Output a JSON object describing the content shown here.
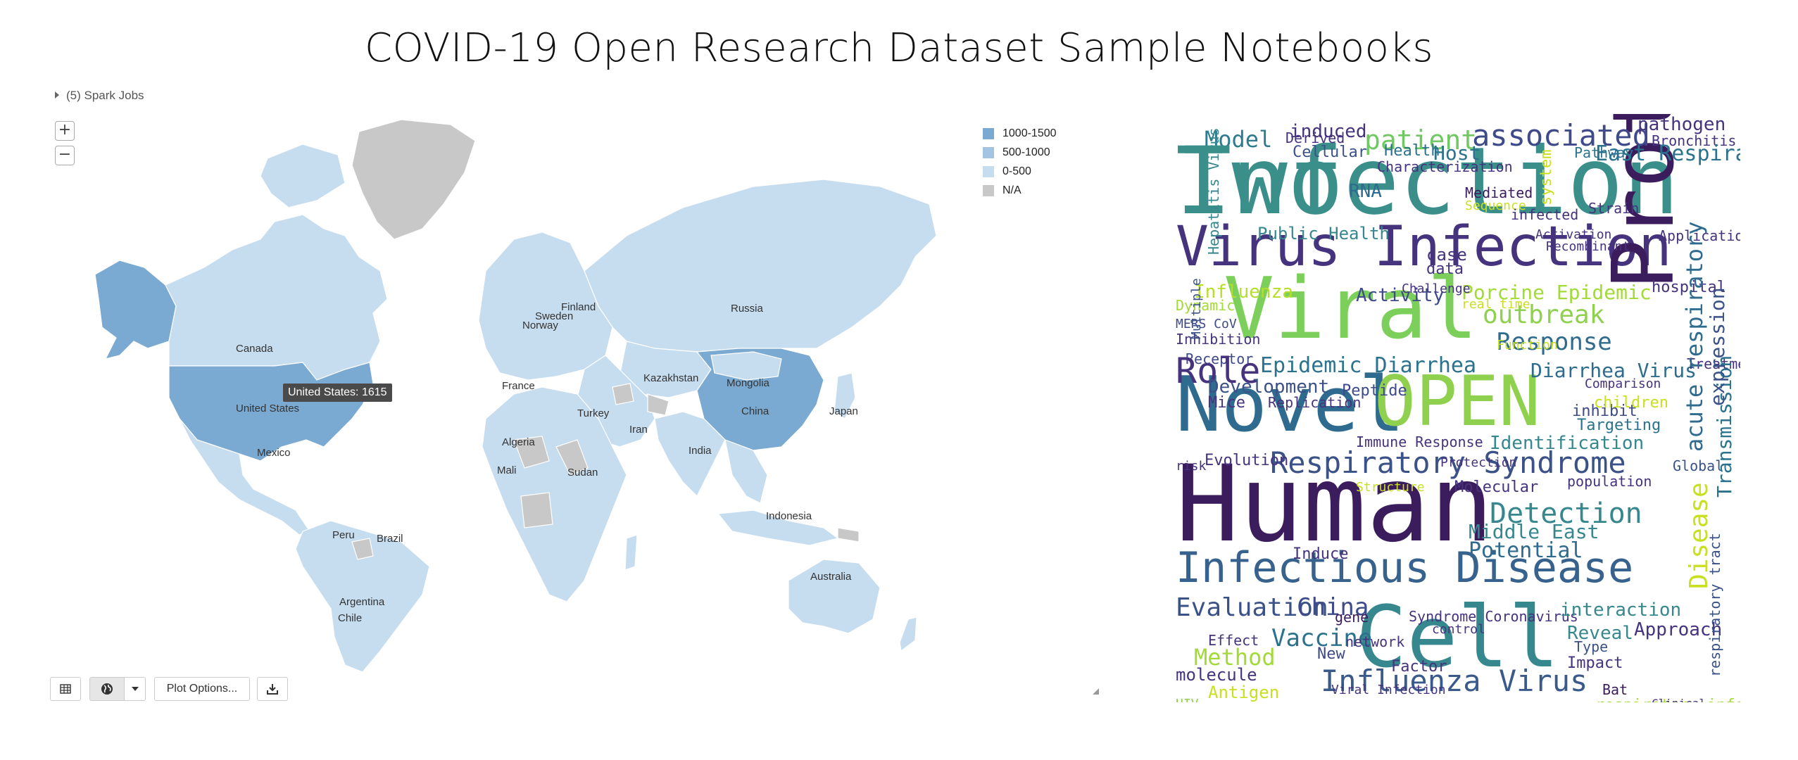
{
  "page": {
    "title": "COVID-19 Open Research Dataset Sample Notebooks"
  },
  "spark_jobs": {
    "label": "(5) Spark Jobs"
  },
  "map": {
    "zoom_in": "+",
    "zoom_out": "−",
    "legend": [
      {
        "label": "1000-1500",
        "color": "#7aa9d1"
      },
      {
        "label": "500-1000",
        "color": "#a3c4e3"
      },
      {
        "label": "0-500",
        "color": "#c6dcef"
      },
      {
        "label": "N/A",
        "color": "#c8c8c8"
      }
    ],
    "tooltip": "United States: 1615",
    "labels": [
      "Canada",
      "United States",
      "Mexico",
      "Peru",
      "Brazil",
      "Argentina",
      "Chile",
      "Russia",
      "Sweden",
      "Finland",
      "Norway",
      "France",
      "Kazakhstan",
      "Mongolia",
      "Turkey",
      "China",
      "Japan",
      "Iran",
      "Algeria",
      "India",
      "Mali",
      "Sudan",
      "Indonesia",
      "Australia"
    ]
  },
  "toolbar": {
    "table_icon": "table-icon",
    "globe_icon": "globe-icon",
    "dropdown_icon": "caret-down-icon",
    "plot_options": "Plot Options...",
    "download_icon": "download-icon"
  },
  "wordcloud": {
    "words": [
      "Infection",
      "Virus Infection",
      "Viral",
      "Protein",
      "Novel",
      "OPEN",
      "Human",
      "Cell",
      "Infectious Disease",
      "Respiratory Syndrome",
      "Influenza Virus",
      "associated",
      "patient",
      "Model",
      "induced",
      "pathogen",
      "Bronchitis Virus",
      "East Respiratory",
      "Host",
      "Health",
      "Pathway",
      "Characterization",
      "RNA",
      "Mediated",
      "Sequence",
      "infected",
      "Public Health",
      "Activation",
      "Application",
      "case",
      "data",
      "Influenza",
      "Dynamic",
      "Activity",
      "Porcine Epidemic",
      "hospital",
      "outbreak",
      "real time",
      "Response",
      "MERS CoV",
      "Inhibition",
      "Receptor",
      "Function",
      "Role",
      "Epidemic Diarrhea",
      "Diarrhea Virus",
      "Treatment",
      "Development",
      "Peptide",
      "Comparison",
      "Mice",
      "Replication",
      "inhibit",
      "children",
      "Targeting",
      "Immune Response",
      "Identification",
      "Evolution",
      "risk",
      "Protection",
      "Global",
      "population",
      "Molecular",
      "Detection",
      "Middle East",
      "Potential",
      "Induce",
      "Disease",
      "acute respiratory",
      "Transmission",
      "expression",
      "Evaluation",
      "China",
      "gene",
      "Syndrome Coronavirus",
      "control",
      "interaction",
      "Reveal",
      "Effect",
      "Method",
      "Vaccine",
      "New",
      "network",
      "Factor",
      "Type",
      "Approach",
      "Impact",
      "molecule",
      "Viral Infection",
      "Antigen",
      "Bat",
      "HIV",
      "respiratory infection",
      "Clinical",
      "Multiple",
      "Hepatitis Virus",
      "respiratory tract",
      "Structure",
      "Recombinant",
      "Challenge",
      "Derived",
      "Cellular",
      "system",
      "Strain",
      "Two"
    ]
  }
}
